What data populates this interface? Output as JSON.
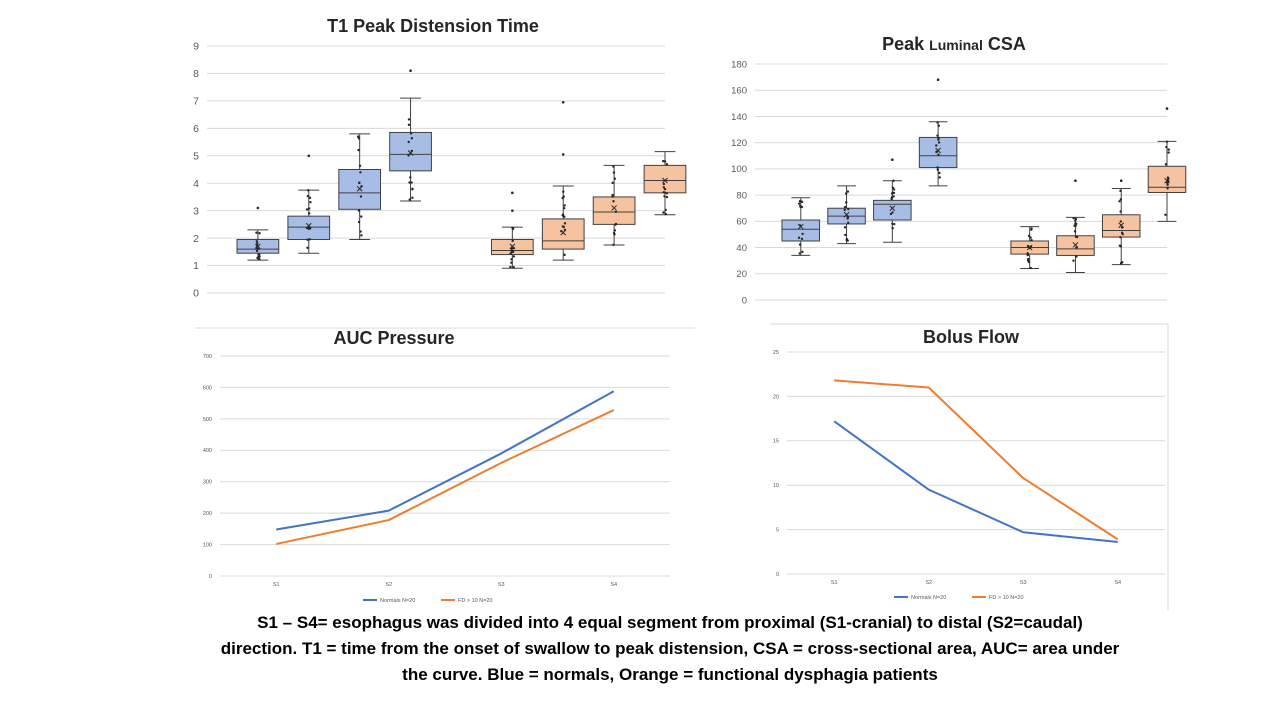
{
  "colors": {
    "normals": "#4472c4",
    "fd": "#ed7d31",
    "normals_box_fill": "#a8bde6",
    "fd_box_fill": "#f6c3a0"
  },
  "caption": {
    "line1": "S1 – S4= esophagus was divided into 4 equal segment from proximal (S1-cranial) to distal (S2=caudal)",
    "line2": "direction. T1 = time from the onset of swallow to peak distension, CSA = cross-sectional  area, AUC= area under",
    "line3": "the curve. Blue = normals, Orange = functional dysphagia patients"
  },
  "chart_data": [
    {
      "id": "t1",
      "type": "box",
      "title": "T1 Peak Distension Time",
      "ylim": [
        0,
        9
      ],
      "yticks": [
        0,
        1,
        2,
        3,
        4,
        5,
        6,
        7,
        8,
        9
      ],
      "grid": true,
      "boxes": [
        {
          "group": "normals",
          "segment": "S1",
          "min": 1.2,
          "q1": 1.45,
          "median": 1.6,
          "q3": 1.95,
          "max": 2.3,
          "mean": 1.7,
          "outliers": [
            3.1
          ]
        },
        {
          "group": "normals",
          "segment": "S2",
          "min": 1.45,
          "q1": 1.95,
          "median": 2.4,
          "q3": 2.8,
          "max": 3.75,
          "mean": 2.45,
          "outliers": [
            5.0
          ]
        },
        {
          "group": "normals",
          "segment": "S3",
          "min": 1.95,
          "q1": 3.05,
          "median": 3.65,
          "q3": 4.5,
          "max": 5.8,
          "mean": 3.8,
          "outliers": []
        },
        {
          "group": "normals",
          "segment": "S4",
          "min": 3.35,
          "q1": 4.45,
          "median": 5.05,
          "q3": 5.85,
          "max": 7.1,
          "mean": 5.1,
          "outliers": [
            8.1
          ]
        },
        {
          "group": "fd",
          "segment": "S1",
          "min": 0.9,
          "q1": 1.4,
          "median": 1.55,
          "q3": 1.95,
          "max": 2.4,
          "mean": 1.7,
          "outliers": [
            3.0,
            3.65
          ]
        },
        {
          "group": "fd",
          "segment": "S2",
          "min": 1.2,
          "q1": 1.6,
          "median": 1.9,
          "q3": 2.7,
          "max": 3.9,
          "mean": 2.2,
          "outliers": [
            5.05,
            6.95
          ]
        },
        {
          "group": "fd",
          "segment": "S3",
          "min": 1.75,
          "q1": 2.5,
          "median": 2.95,
          "q3": 3.5,
          "max": 4.65,
          "mean": 3.1,
          "outliers": []
        },
        {
          "group": "fd",
          "segment": "S4",
          "min": 2.85,
          "q1": 3.65,
          "median": 4.1,
          "q3": 4.65,
          "max": 5.15,
          "mean": 4.1,
          "outliers": []
        }
      ]
    },
    {
      "id": "csa",
      "type": "box",
      "title_big1": "Peak ",
      "title_small": "Luminal",
      "title_big2": " CSA",
      "ylim": [
        0,
        180
      ],
      "yticks": [
        0,
        20,
        40,
        60,
        80,
        100,
        120,
        140,
        160,
        180
      ],
      "grid": true,
      "boxes": [
        {
          "group": "normals",
          "segment": "S1",
          "min": 34,
          "q1": 45,
          "median": 54,
          "q3": 61,
          "max": 78,
          "mean": 56,
          "outliers": []
        },
        {
          "group": "normals",
          "segment": "S2",
          "min": 43,
          "q1": 58,
          "median": 64,
          "q3": 70,
          "max": 87,
          "mean": 65,
          "outliers": []
        },
        {
          "group": "normals",
          "segment": "S3",
          "min": 44,
          "q1": 61,
          "median": 73,
          "q3": 76,
          "max": 91,
          "mean": 70,
          "outliers": [
            107
          ]
        },
        {
          "group": "normals",
          "segment": "S4",
          "min": 87,
          "q1": 101,
          "median": 110,
          "q3": 124,
          "max": 136,
          "mean": 114,
          "outliers": [
            168
          ]
        },
        {
          "group": "fd",
          "segment": "S1",
          "min": 24,
          "q1": 35,
          "median": 40,
          "q3": 45,
          "max": 56,
          "mean": 40,
          "outliers": []
        },
        {
          "group": "fd",
          "segment": "S2",
          "min": 21,
          "q1": 34,
          "median": 39,
          "q3": 49,
          "max": 63,
          "mean": 42,
          "outliers": [
            91
          ]
        },
        {
          "group": "fd",
          "segment": "S3",
          "min": 27,
          "q1": 48,
          "median": 53,
          "q3": 65,
          "max": 85,
          "mean": 57,
          "outliers": [
            91
          ]
        },
        {
          "group": "fd",
          "segment": "S4",
          "min": 60,
          "q1": 82,
          "median": 86,
          "q3": 102,
          "max": 121,
          "mean": 91,
          "outliers": [
            146
          ]
        }
      ]
    },
    {
      "id": "auc",
      "type": "line",
      "title": "AUC Pressure",
      "categories": [
        "S1",
        "S2",
        "S3",
        "S4"
      ],
      "ylim": [
        0,
        700
      ],
      "yticks": [
        0,
        100,
        200,
        300,
        400,
        500,
        600,
        700
      ],
      "grid": true,
      "legend_position": "bottom",
      "series": [
        {
          "name": "Normals N=20",
          "group": "normals",
          "values": [
            148,
            208,
            390,
            588
          ]
        },
        {
          "name": "FD > 10 N=20",
          "group": "fd",
          "values": [
            102,
            178,
            360,
            528
          ]
        }
      ]
    },
    {
      "id": "bolus",
      "type": "line",
      "title": "Bolus Flow",
      "categories": [
        "S1",
        "S2",
        "S3",
        "S4"
      ],
      "ylim": [
        0,
        25
      ],
      "yticks": [
        0,
        5,
        10,
        15,
        20,
        25
      ],
      "grid": true,
      "legend_position": "bottom",
      "series": [
        {
          "name": "Normals N=20",
          "group": "normals",
          "values": [
            17.2,
            9.5,
            4.7,
            3.6
          ]
        },
        {
          "name": "FD > 10 N=20",
          "group": "fd",
          "values": [
            21.8,
            21.0,
            10.8,
            3.9
          ]
        }
      ]
    }
  ]
}
